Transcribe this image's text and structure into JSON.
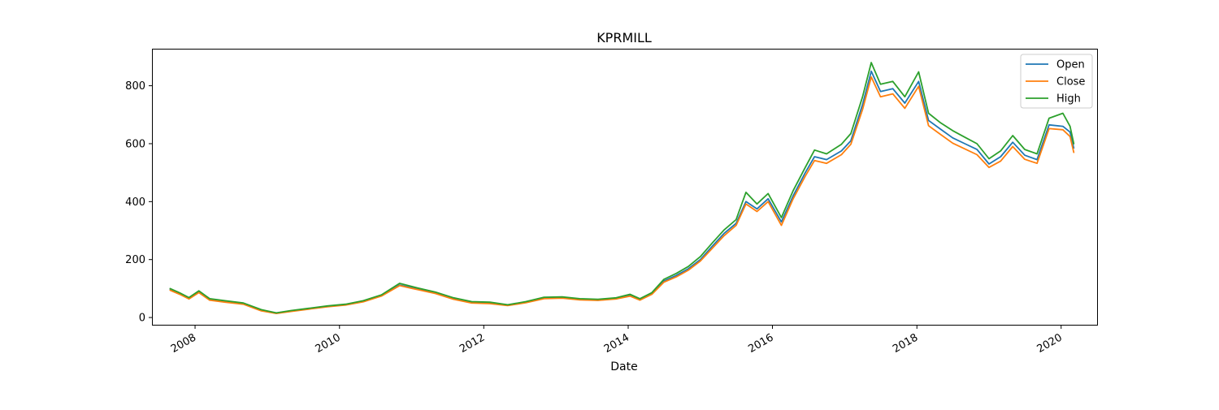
{
  "chart_data": {
    "type": "line",
    "title": "KPRMILL",
    "xlabel": "Date",
    "ylabel": "",
    "xlim": [
      "2007-06-01",
      "2020-07-01"
    ],
    "ylim": [
      -25,
      925
    ],
    "x_ticks": [
      "2008",
      "2010",
      "2012",
      "2014",
      "2016",
      "2018",
      "2020"
    ],
    "y_ticks": [
      0,
      200,
      400,
      600,
      800
    ],
    "grid": false,
    "legend_position": "upper right",
    "series": [
      {
        "name": "Open",
        "color": "#1f77b4",
        "points": [
          [
            "2007-08-28",
            96
          ],
          [
            "2007-10-15",
            82
          ],
          [
            "2007-12-01",
            66
          ],
          [
            "2008-01-20",
            88
          ],
          [
            "2008-03-15",
            62
          ],
          [
            "2008-06-01",
            55
          ],
          [
            "2008-09-01",
            48
          ],
          [
            "2008-12-01",
            25
          ],
          [
            "2009-02-15",
            15
          ],
          [
            "2009-05-01",
            22
          ],
          [
            "2009-08-01",
            30
          ],
          [
            "2009-11-01",
            38
          ],
          [
            "2010-02-01",
            44
          ],
          [
            "2010-05-01",
            55
          ],
          [
            "2010-08-01",
            75
          ],
          [
            "2010-11-01",
            112
          ],
          [
            "2011-02-01",
            98
          ],
          [
            "2011-05-01",
            85
          ],
          [
            "2011-08-01",
            65
          ],
          [
            "2011-11-01",
            52
          ],
          [
            "2012-02-01",
            50
          ],
          [
            "2012-05-01",
            42
          ],
          [
            "2012-08-01",
            52
          ],
          [
            "2012-11-01",
            66
          ],
          [
            "2013-02-01",
            68
          ],
          [
            "2013-05-01",
            62
          ],
          [
            "2013-08-01",
            60
          ],
          [
            "2013-11-01",
            65
          ],
          [
            "2014-01-10",
            76
          ],
          [
            "2014-03-01",
            62
          ],
          [
            "2014-05-01",
            82
          ],
          [
            "2014-07-01",
            126
          ],
          [
            "2014-09-01",
            145
          ],
          [
            "2014-11-01",
            168
          ],
          [
            "2015-01-01",
            200
          ],
          [
            "2015-03-01",
            245
          ],
          [
            "2015-05-01",
            290
          ],
          [
            "2015-07-01",
            325
          ],
          [
            "2015-08-20",
            400
          ],
          [
            "2015-10-15",
            375
          ],
          [
            "2015-12-10",
            410
          ],
          [
            "2016-02-15",
            330
          ],
          [
            "2016-04-15",
            420
          ],
          [
            "2016-06-15",
            500
          ],
          [
            "2016-08-01",
            555
          ],
          [
            "2016-10-01",
            545
          ],
          [
            "2016-12-15",
            575
          ],
          [
            "2017-02-01",
            610
          ],
          [
            "2017-04-01",
            735
          ],
          [
            "2017-05-15",
            850
          ],
          [
            "2017-07-01",
            780
          ],
          [
            "2017-09-01",
            790
          ],
          [
            "2017-11-01",
            740
          ],
          [
            "2018-01-10",
            815
          ],
          [
            "2018-03-01",
            680
          ],
          [
            "2018-05-01",
            650
          ],
          [
            "2018-07-01",
            620
          ],
          [
            "2018-09-01",
            600
          ],
          [
            "2018-11-01",
            580
          ],
          [
            "2019-01-01",
            530
          ],
          [
            "2019-03-01",
            555
          ],
          [
            "2019-05-01",
            605
          ],
          [
            "2019-07-01",
            560
          ],
          [
            "2019-09-01",
            545
          ],
          [
            "2019-11-01",
            665
          ],
          [
            "2020-01-10",
            660
          ],
          [
            "2020-02-15",
            640
          ],
          [
            "2020-03-05",
            585
          ]
        ]
      },
      {
        "name": "Close",
        "color": "#ff7f0e",
        "points": [
          [
            "2007-08-28",
            94
          ],
          [
            "2007-10-15",
            80
          ],
          [
            "2007-12-01",
            64
          ],
          [
            "2008-01-20",
            86
          ],
          [
            "2008-03-15",
            60
          ],
          [
            "2008-06-01",
            53
          ],
          [
            "2008-09-01",
            46
          ],
          [
            "2008-12-01",
            23
          ],
          [
            "2009-02-15",
            14
          ],
          [
            "2009-05-01",
            21
          ],
          [
            "2009-08-01",
            29
          ],
          [
            "2009-11-01",
            37
          ],
          [
            "2010-02-01",
            43
          ],
          [
            "2010-05-01",
            54
          ],
          [
            "2010-08-01",
            74
          ],
          [
            "2010-11-01",
            110
          ],
          [
            "2011-02-01",
            96
          ],
          [
            "2011-05-01",
            83
          ],
          [
            "2011-08-01",
            63
          ],
          [
            "2011-11-01",
            50
          ],
          [
            "2012-02-01",
            48
          ],
          [
            "2012-05-01",
            41
          ],
          [
            "2012-08-01",
            51
          ],
          [
            "2012-11-01",
            65
          ],
          [
            "2013-02-01",
            67
          ],
          [
            "2013-05-01",
            61
          ],
          [
            "2013-08-01",
            59
          ],
          [
            "2013-11-01",
            64
          ],
          [
            "2014-01-10",
            74
          ],
          [
            "2014-03-01",
            60
          ],
          [
            "2014-05-01",
            80
          ],
          [
            "2014-07-01",
            122
          ],
          [
            "2014-09-01",
            140
          ],
          [
            "2014-11-01",
            163
          ],
          [
            "2015-01-01",
            195
          ],
          [
            "2015-03-01",
            238
          ],
          [
            "2015-05-01",
            282
          ],
          [
            "2015-07-01",
            318
          ],
          [
            "2015-08-20",
            392
          ],
          [
            "2015-10-15",
            366
          ],
          [
            "2015-12-10",
            400
          ],
          [
            "2016-02-15",
            318
          ],
          [
            "2016-04-15",
            410
          ],
          [
            "2016-06-15",
            488
          ],
          [
            "2016-08-01",
            542
          ],
          [
            "2016-10-01",
            532
          ],
          [
            "2016-12-15",
            562
          ],
          [
            "2017-02-01",
            598
          ],
          [
            "2017-04-01",
            718
          ],
          [
            "2017-05-15",
            830
          ],
          [
            "2017-07-01",
            762
          ],
          [
            "2017-09-01",
            772
          ],
          [
            "2017-11-01",
            722
          ],
          [
            "2018-01-10",
            798
          ],
          [
            "2018-03-01",
            662
          ],
          [
            "2018-05-01",
            632
          ],
          [
            "2018-07-01",
            602
          ],
          [
            "2018-09-01",
            582
          ],
          [
            "2018-11-01",
            562
          ],
          [
            "2019-01-01",
            518
          ],
          [
            "2019-03-01",
            540
          ],
          [
            "2019-05-01",
            590
          ],
          [
            "2019-07-01",
            546
          ],
          [
            "2019-09-01",
            532
          ],
          [
            "2019-11-01",
            652
          ],
          [
            "2020-01-10",
            648
          ],
          [
            "2020-02-15",
            625
          ],
          [
            "2020-03-05",
            570
          ]
        ]
      },
      {
        "name": "High",
        "color": "#2ca02c",
        "points": [
          [
            "2007-08-28",
            100
          ],
          [
            "2007-10-15",
            85
          ],
          [
            "2007-12-01",
            69
          ],
          [
            "2008-01-20",
            92
          ],
          [
            "2008-03-15",
            65
          ],
          [
            "2008-06-01",
            58
          ],
          [
            "2008-09-01",
            50
          ],
          [
            "2008-12-01",
            27
          ],
          [
            "2009-02-15",
            16
          ],
          [
            "2009-05-01",
            24
          ],
          [
            "2009-08-01",
            32
          ],
          [
            "2009-11-01",
            40
          ],
          [
            "2010-02-01",
            46
          ],
          [
            "2010-05-01",
            58
          ],
          [
            "2010-08-01",
            78
          ],
          [
            "2010-11-01",
            118
          ],
          [
            "2011-02-01",
            102
          ],
          [
            "2011-05-01",
            88
          ],
          [
            "2011-08-01",
            68
          ],
          [
            "2011-11-01",
            55
          ],
          [
            "2012-02-01",
            53
          ],
          [
            "2012-05-01",
            44
          ],
          [
            "2012-08-01",
            55
          ],
          [
            "2012-11-01",
            70
          ],
          [
            "2013-02-01",
            71
          ],
          [
            "2013-05-01",
            65
          ],
          [
            "2013-08-01",
            63
          ],
          [
            "2013-11-01",
            68
          ],
          [
            "2014-01-10",
            80
          ],
          [
            "2014-03-01",
            65
          ],
          [
            "2014-05-01",
            86
          ],
          [
            "2014-07-01",
            132
          ],
          [
            "2014-09-01",
            152
          ],
          [
            "2014-11-01",
            176
          ],
          [
            "2015-01-01",
            210
          ],
          [
            "2015-03-01",
            256
          ],
          [
            "2015-05-01",
            302
          ],
          [
            "2015-07-01",
            338
          ],
          [
            "2015-08-20",
            432
          ],
          [
            "2015-10-15",
            392
          ],
          [
            "2015-12-10",
            428
          ],
          [
            "2016-02-15",
            345
          ],
          [
            "2016-04-15",
            438
          ],
          [
            "2016-06-15",
            518
          ],
          [
            "2016-08-01",
            578
          ],
          [
            "2016-10-01",
            565
          ],
          [
            "2016-12-15",
            598
          ],
          [
            "2017-02-01",
            635
          ],
          [
            "2017-04-01",
            762
          ],
          [
            "2017-05-15",
            880
          ],
          [
            "2017-07-01",
            805
          ],
          [
            "2017-09-01",
            815
          ],
          [
            "2017-11-01",
            762
          ],
          [
            "2018-01-10",
            848
          ],
          [
            "2018-03-01",
            705
          ],
          [
            "2018-05-01",
            672
          ],
          [
            "2018-07-01",
            645
          ],
          [
            "2018-09-01",
            622
          ],
          [
            "2018-11-01",
            600
          ],
          [
            "2019-01-01",
            548
          ],
          [
            "2019-03-01",
            575
          ],
          [
            "2019-05-01",
            628
          ],
          [
            "2019-07-01",
            580
          ],
          [
            "2019-09-01",
            565
          ],
          [
            "2019-11-01",
            688
          ],
          [
            "2020-01-10",
            705
          ],
          [
            "2020-02-15",
            660
          ],
          [
            "2020-03-05",
            600
          ]
        ]
      }
    ]
  }
}
